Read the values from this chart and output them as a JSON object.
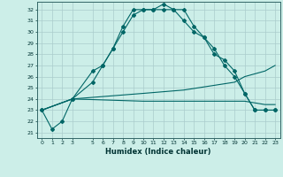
{
  "xlabel": "Humidex (Indice chaleur)",
  "bg_color": "#cceee8",
  "grid_color": "#aacccc",
  "line_color": "#006666",
  "xlim": [
    -0.5,
    23.5
  ],
  "ylim": [
    20.5,
    32.7
  ],
  "yticks": [
    21,
    22,
    23,
    24,
    25,
    26,
    27,
    28,
    29,
    30,
    31,
    32
  ],
  "xticks": [
    0,
    1,
    2,
    3,
    5,
    6,
    7,
    8,
    9,
    10,
    11,
    12,
    13,
    14,
    15,
    16,
    17,
    18,
    19,
    20,
    21,
    22,
    23
  ],
  "line1": {
    "x": [
      0,
      1,
      2,
      3,
      5,
      6,
      7,
      8,
      9,
      10,
      11,
      12,
      13,
      14,
      15,
      16,
      17,
      18,
      19,
      20,
      21,
      22,
      23
    ],
    "y": [
      23.0,
      21.3,
      22.0,
      24.0,
      25.5,
      27.0,
      28.5,
      30.5,
      32.0,
      32.0,
      32.0,
      32.5,
      32.0,
      32.0,
      30.5,
      29.5,
      28.5,
      27.0,
      26.0,
      24.5,
      23.0,
      23.0,
      23.0
    ]
  },
  "line2": {
    "x": [
      0,
      3,
      5,
      6,
      7,
      8,
      9,
      10,
      11,
      12,
      13,
      14,
      15,
      16,
      17,
      18,
      19,
      20,
      21,
      22,
      23
    ],
    "y": [
      23.0,
      24.0,
      26.5,
      27.0,
      28.5,
      30.0,
      31.5,
      32.0,
      32.0,
      32.0,
      32.0,
      31.0,
      30.0,
      29.5,
      28.0,
      27.5,
      26.5,
      24.5,
      23.0,
      23.0,
      23.0
    ]
  },
  "line3": {
    "x": [
      0,
      3,
      10,
      14,
      19,
      20,
      22,
      23
    ],
    "y": [
      23.0,
      24.0,
      24.5,
      24.8,
      25.5,
      26.0,
      26.5,
      27.0
    ]
  },
  "line4": {
    "x": [
      0,
      3,
      10,
      14,
      19,
      20,
      22,
      23
    ],
    "y": [
      23.0,
      24.0,
      23.8,
      23.8,
      23.8,
      23.8,
      23.5,
      23.5
    ]
  }
}
